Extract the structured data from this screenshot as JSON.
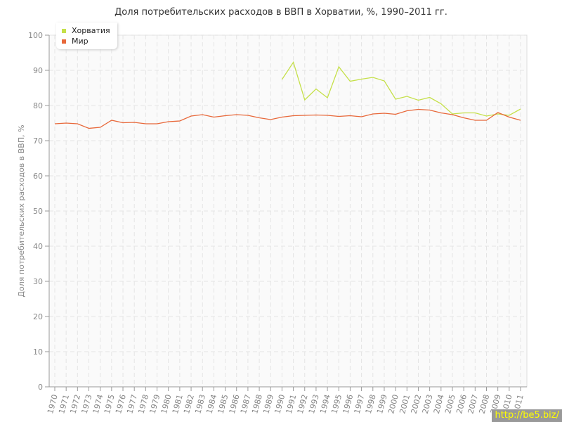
{
  "chart_data": {
    "type": "line",
    "title": "Доля потребительских расходов в ВВП в Хорватии, %, 1990–2011 гг.",
    "xlabel": "",
    "ylabel": "Доля потребительских расходов в ВВП, %",
    "ylim": [
      0,
      100
    ],
    "yticks": [
      0,
      10,
      20,
      30,
      40,
      50,
      60,
      70,
      80,
      90,
      100
    ],
    "grid": true,
    "legend": "top-left",
    "x": [
      1970,
      1971,
      1972,
      1973,
      1974,
      1975,
      1976,
      1977,
      1978,
      1979,
      1980,
      1981,
      1982,
      1983,
      1984,
      1985,
      1986,
      1987,
      1988,
      1989,
      1990,
      1991,
      1992,
      1993,
      1994,
      1995,
      1996,
      1997,
      1998,
      1999,
      2000,
      2001,
      2002,
      2003,
      2004,
      2005,
      2006,
      2007,
      2008,
      2009,
      2010,
      2011
    ],
    "series": [
      {
        "name": "Хорватия",
        "color": "#c5e04a",
        "values": [
          null,
          null,
          null,
          null,
          null,
          null,
          null,
          null,
          null,
          null,
          null,
          null,
          null,
          null,
          null,
          null,
          null,
          null,
          null,
          null,
          87.4,
          92.3,
          81.6,
          84.7,
          82.2,
          91.0,
          86.9,
          87.5,
          88.0,
          87.0,
          81.8,
          82.6,
          81.5,
          82.3,
          80.5,
          77.6,
          77.9,
          77.9,
          77.0,
          77.6,
          77.2,
          79.0
        ]
      },
      {
        "name": "Мир",
        "color": "#e8683a",
        "values": [
          74.8,
          75.0,
          74.8,
          73.5,
          73.8,
          75.8,
          75.1,
          75.2,
          74.8,
          74.8,
          75.4,
          75.6,
          77.0,
          77.4,
          76.7,
          77.1,
          77.4,
          77.2,
          76.5,
          76.0,
          76.7,
          77.1,
          77.2,
          77.3,
          77.2,
          76.9,
          77.1,
          76.8,
          77.6,
          77.8,
          77.5,
          78.5,
          78.9,
          78.7,
          77.9,
          77.4,
          76.5,
          75.8,
          75.8,
          78.0,
          76.7,
          75.8
        ]
      }
    ]
  },
  "watermark": "http://be5.biz/"
}
